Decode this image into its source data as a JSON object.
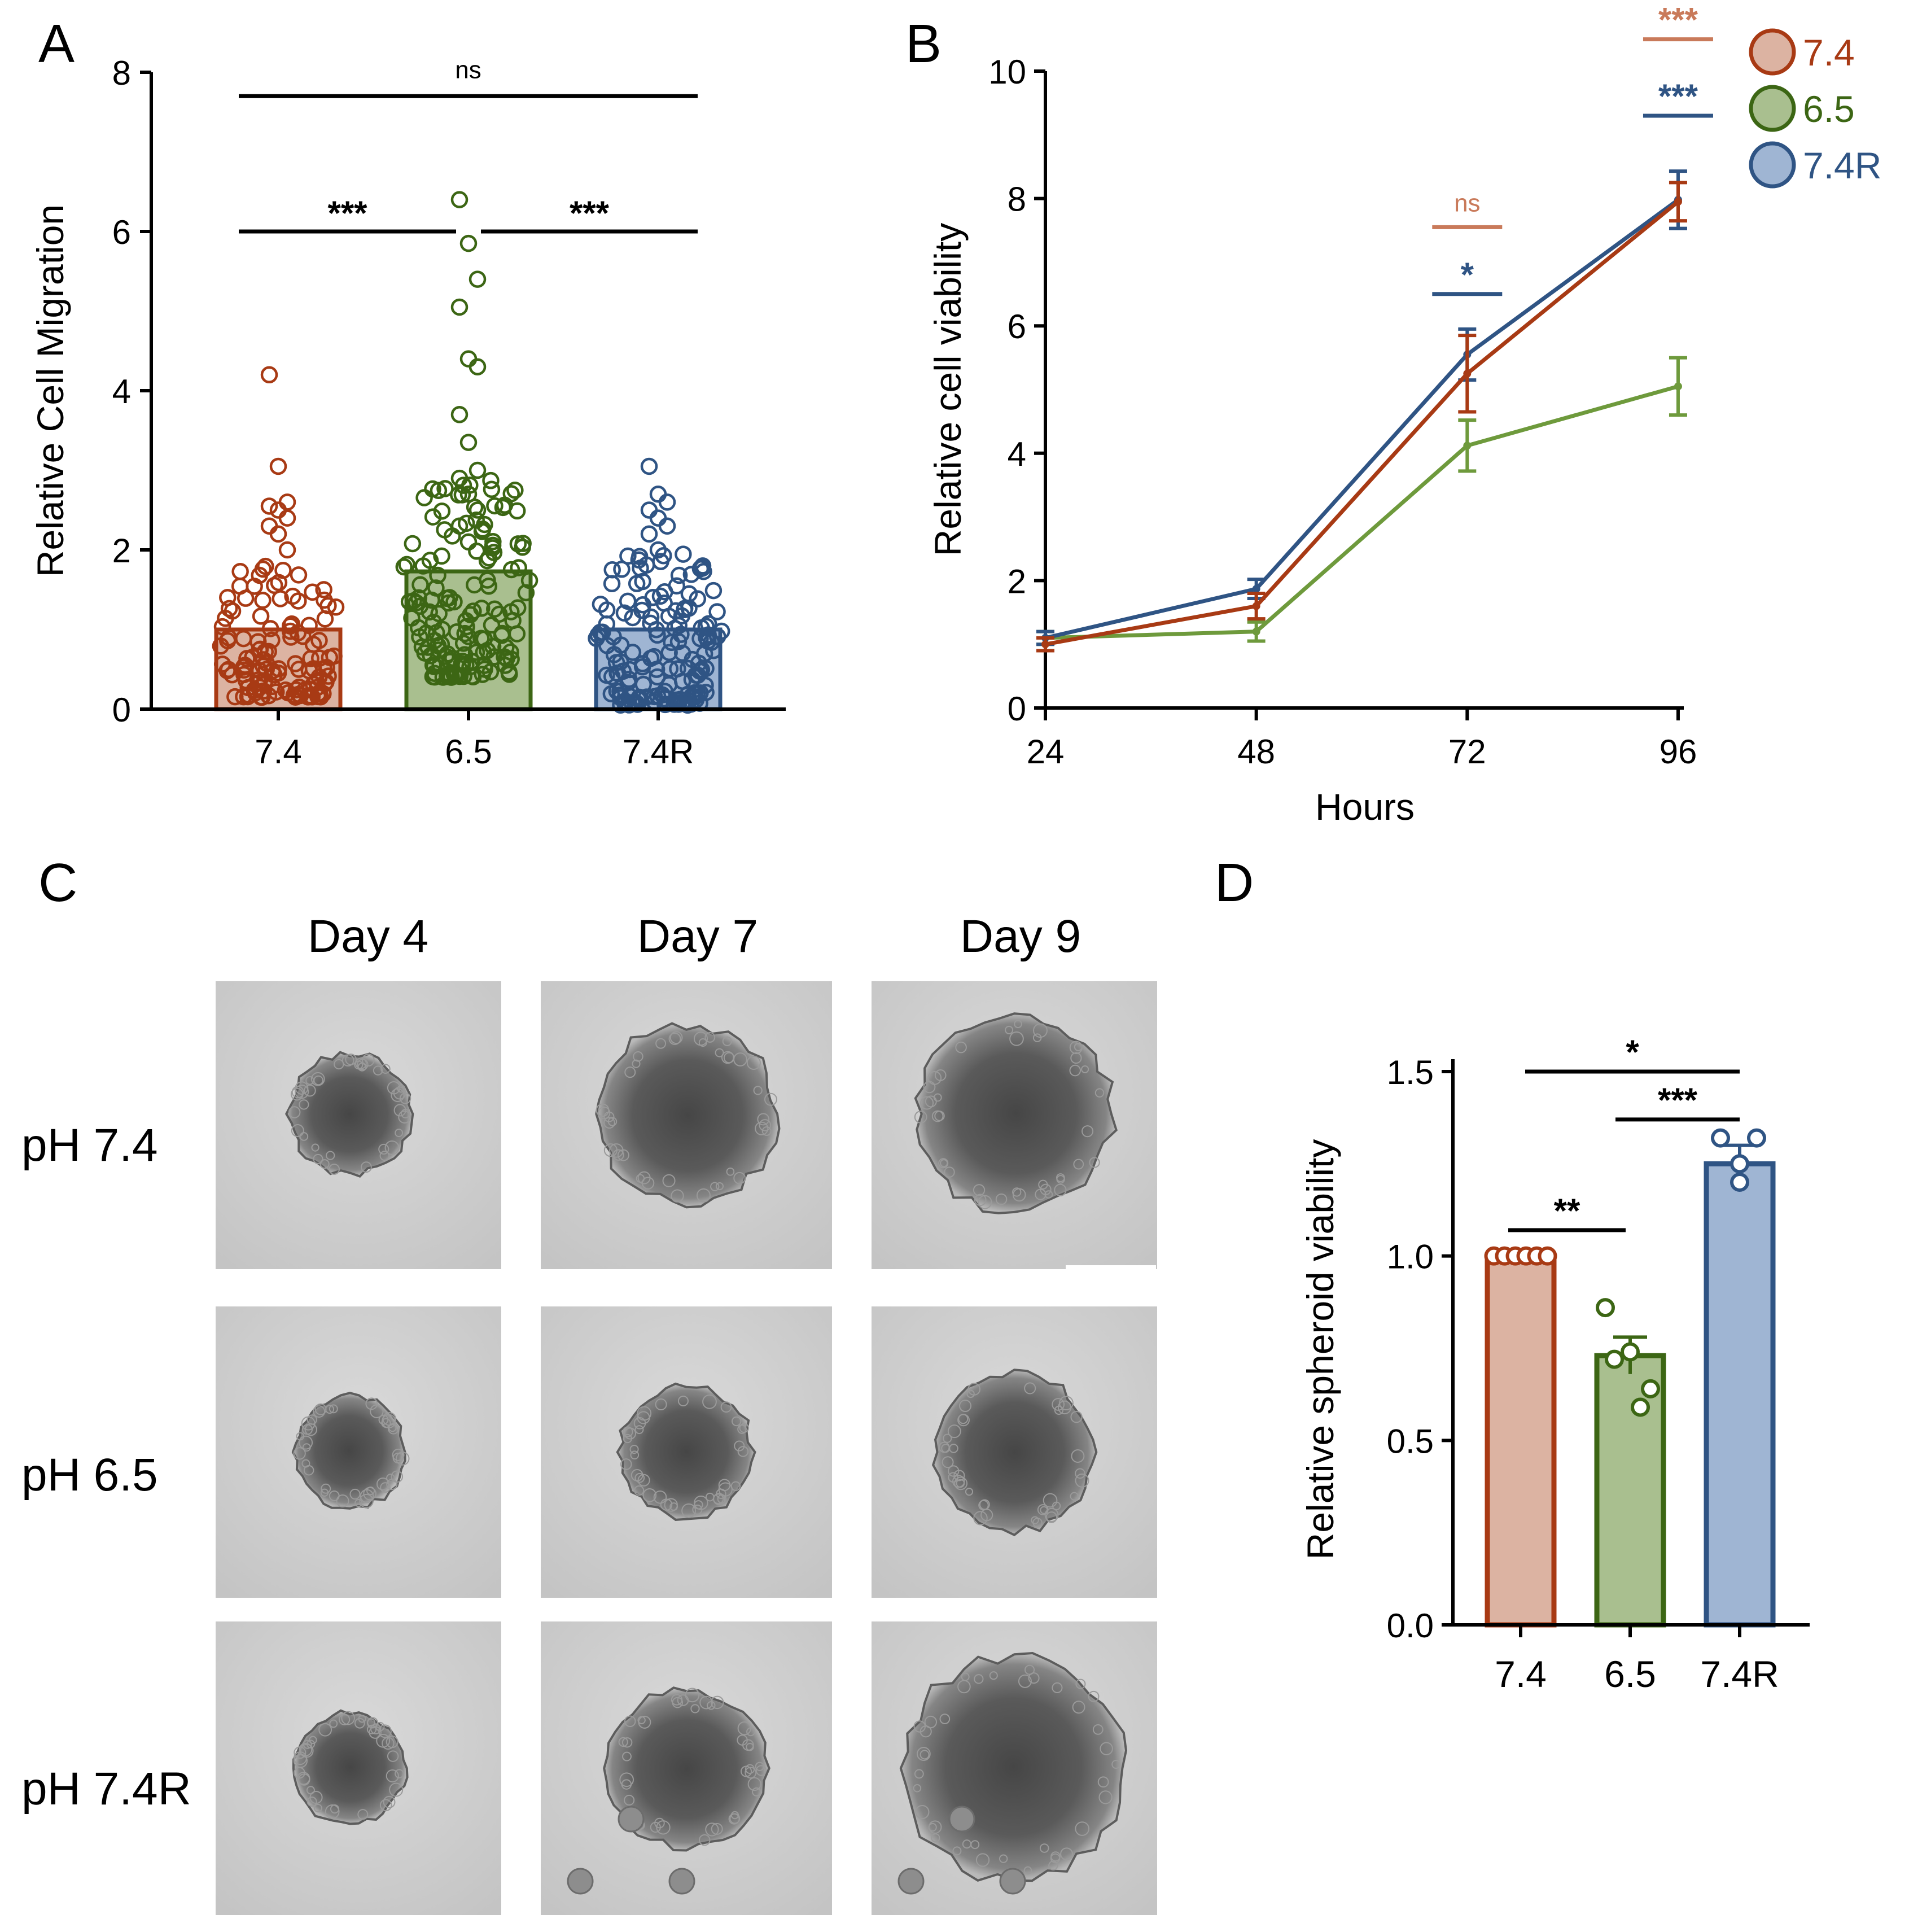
{
  "panels": {
    "a": "A",
    "b": "B",
    "c": "C",
    "d": "D"
  },
  "colors": {
    "red": "#a83a14",
    "red_fill": "#dcb3a2",
    "green": "#3c6614",
    "green_fill": "#a9bf8f",
    "blue": "#2f5484",
    "blue_fill": "#9fb5d3",
    "green_line": "#6e9a3c",
    "ns_72": "#c97a5a"
  },
  "chart_data": [
    {
      "panel": "A",
      "type": "bar",
      "ylabel": "Relative Cell Migration",
      "categories": [
        "7.4",
        "6.5",
        "7.4R"
      ],
      "values": [
        1.0,
        1.73,
        1.0
      ],
      "ylim": [
        0,
        8
      ],
      "yticks": [
        "0",
        "2",
        "4",
        "6",
        "8"
      ],
      "points_outliers": [
        [
          4.2,
          3.05,
          2.6,
          2.55,
          2.5,
          2.4,
          2.3,
          2.2,
          2.0
        ],
        [
          6.4,
          5.85,
          5.4,
          5.05,
          4.4,
          4.3,
          3.7,
          3.35,
          3.0,
          2.9,
          2.7,
          2.5,
          2.3,
          2.1
        ],
        [
          3.05,
          2.7,
          2.6,
          2.5,
          2.4,
          2.3,
          2.2,
          2.0
        ]
      ],
      "significance": [
        {
          "label": "ns",
          "from": 0,
          "to": 2,
          "y": 7.7
        },
        {
          "label": "***",
          "from": 0,
          "to": 1,
          "y": 6.0
        },
        {
          "label": "***",
          "from": 1,
          "to": 2,
          "y": 6.0
        }
      ]
    },
    {
      "panel": "B",
      "type": "line",
      "xlabel": "Hours",
      "ylabel": "Relative cell viability",
      "x": [
        24,
        48,
        72,
        96
      ],
      "xticks": [
        "24",
        "48",
        "72",
        "96"
      ],
      "ylim": [
        0,
        10
      ],
      "yticks": [
        "0",
        "2",
        "4",
        "6",
        "8",
        "10"
      ],
      "series": [
        {
          "name": "7.4",
          "values": [
            1.0,
            1.6,
            5.25,
            7.95
          ],
          "err": [
            0.1,
            0.2,
            0.6,
            0.3
          ]
        },
        {
          "name": "6.5",
          "values": [
            1.1,
            1.2,
            4.12,
            5.05
          ],
          "err": [
            0.1,
            0.15,
            0.4,
            0.45
          ]
        },
        {
          "name": "7.4R",
          "values": [
            1.1,
            1.87,
            5.55,
            7.98
          ],
          "err": [
            0.1,
            0.15,
            0.4,
            0.45
          ]
        }
      ],
      "legend": [
        "7.4",
        "6.5",
        "7.4R"
      ],
      "significance": [
        {
          "label": "ns",
          "x": 72,
          "y": 7.55,
          "color": "ns_72"
        },
        {
          "label": "*",
          "x": 72,
          "y": 6.5,
          "color": "blue"
        },
        {
          "label": "***",
          "x": 96,
          "y": 10.5,
          "color": "ns_72"
        },
        {
          "label": "***",
          "x": 96,
          "y": 9.3,
          "color": "blue"
        }
      ]
    },
    {
      "panel": "D",
      "type": "bar",
      "ylabel": "Relative spheroid viability",
      "categories": [
        "7.4",
        "6.5",
        "7.4R"
      ],
      "values": [
        1.0,
        0.73,
        1.25
      ],
      "err": [
        0.0,
        0.05,
        0.05
      ],
      "ylim": [
        0,
        1.5
      ],
      "yticks": [
        "0.0",
        "0.5",
        "1.0",
        "1.5"
      ],
      "points": [
        [
          1.0,
          1.0,
          1.0,
          1.0,
          1.0,
          1.0
        ],
        [
          0.86,
          0.74,
          0.72,
          0.64,
          0.59
        ],
        [
          1.32,
          1.32,
          1.25,
          1.2
        ]
      ],
      "significance": [
        {
          "label": "**",
          "from": 0,
          "to": 1,
          "y": 1.07
        },
        {
          "label": "***",
          "from": 1,
          "to": 2,
          "y": 1.37
        },
        {
          "label": "*",
          "from": 0,
          "to": 2,
          "y": 1.5
        }
      ]
    }
  ],
  "panel_c": {
    "days": [
      "Day 4",
      "Day 7",
      "Day 9"
    ],
    "rows": [
      "pH 7.4",
      "pH 6.5",
      "pH 7.4R"
    ]
  }
}
